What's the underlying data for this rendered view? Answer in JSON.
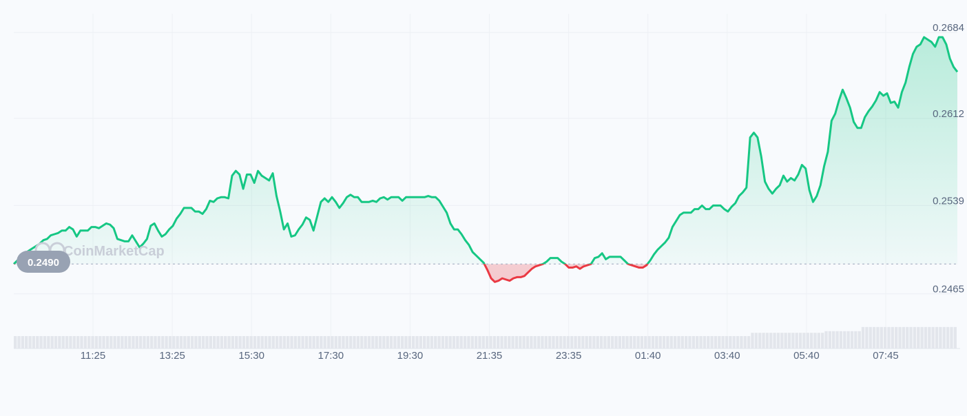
{
  "watermark": "CoinMarketCap",
  "open_price_label": "0.2490",
  "colors": {
    "up": "#16c784",
    "down": "#ea3943",
    "up_fill": "#16c784",
    "down_fill": "#ea3943",
    "volume": "#e3e6ec",
    "reference": "#a6b0c3"
  },
  "chart_data": {
    "type": "area",
    "title": "",
    "xlabel": "",
    "ylabel": "",
    "ylim": [
      0.244,
      0.2695
    ],
    "y_ticks": [
      "0.2684",
      "0.2612",
      "0.2539",
      "0.2465"
    ],
    "y_tick_values": [
      0.2684,
      0.2612,
      0.2539,
      0.2465
    ],
    "x_tick_labels": [
      "11:25",
      "13:25",
      "15:30",
      "17:30",
      "19:30",
      "21:35",
      "23:35",
      "01:40",
      "03:40",
      "05:40",
      "07:45"
    ],
    "reference_value": 0.249,
    "grid": true,
    "series": [
      {
        "x_start_index": 0,
        "values": [
          0.249,
          0.2493,
          0.2496,
          0.2499,
          0.2501,
          0.2503,
          0.2505,
          0.2507,
          0.251,
          0.2511,
          0.2514,
          0.2515,
          0.2516,
          0.2518,
          0.2518,
          0.2521,
          0.2519,
          0.2513,
          0.2518,
          0.2518,
          0.2518,
          0.2521,
          0.2521,
          0.252,
          0.2522,
          0.2524,
          0.2523,
          0.252,
          0.2511,
          0.251,
          0.2509,
          0.2509,
          0.2514,
          0.2509,
          0.2504,
          0.2507,
          0.2511,
          0.2522,
          0.2524,
          0.2518,
          0.2513,
          0.2515,
          0.2519,
          0.2522,
          0.2528,
          0.2532,
          0.2537,
          0.2537,
          0.2537,
          0.2534,
          0.2534,
          0.2532,
          0.2536,
          0.2543,
          0.2542,
          0.2545,
          0.2546,
          0.2546,
          0.2545,
          0.2564,
          0.2568,
          0.2565,
          0.2553,
          0.2565,
          0.2565,
          0.2558,
          0.2568,
          0.2564,
          0.2562,
          0.256,
          0.2566,
          0.2547,
          0.2534,
          0.2519,
          0.2524,
          0.2513,
          0.2514,
          0.2519,
          0.2523,
          0.2529,
          0.2527,
          0.2518,
          0.253,
          0.2542,
          0.2545,
          0.2542,
          0.2546,
          0.2542,
          0.2537,
          0.2541,
          0.2546,
          0.2548,
          0.2546,
          0.2546,
          0.2542,
          0.2542,
          0.2542,
          0.2543,
          0.2542,
          0.2545,
          0.2546,
          0.2544,
          0.2546,
          0.2546,
          0.2546,
          0.2543,
          0.2546,
          0.2546,
          0.2546,
          0.2546,
          0.2546,
          0.2546,
          0.2547,
          0.2546,
          0.2546,
          0.2543,
          0.2538,
          0.2533,
          0.2524,
          0.2519,
          0.2519,
          0.2515,
          0.251,
          0.2506,
          0.25,
          0.2497,
          0.2494,
          0.2491,
          0.2485,
          0.2478,
          0.2475,
          0.2476,
          0.2478,
          0.2477,
          0.2476,
          0.2478,
          0.2479,
          0.2479,
          0.248,
          0.2483,
          0.2486,
          0.2488,
          0.2489,
          0.249,
          0.2492,
          0.2495,
          0.2495,
          0.2495,
          0.2492,
          0.249,
          0.2487,
          0.2487,
          0.2488,
          0.2486,
          0.2488,
          0.2489,
          0.249,
          0.2495,
          0.2496,
          0.2499,
          0.2494,
          0.2496,
          0.2496,
          0.2496,
          0.2496,
          0.2493,
          0.249,
          0.2489,
          0.2488,
          0.2487,
          0.2487,
          0.2489,
          0.2493,
          0.2498,
          0.2502,
          0.2505,
          0.2508,
          0.2512,
          0.2521,
          0.2526,
          0.2531,
          0.2533,
          0.2533,
          0.2533,
          0.2536,
          0.2536,
          0.2539,
          0.2536,
          0.2536,
          0.2539,
          0.2539,
          0.2539,
          0.2536,
          0.2534,
          0.2538,
          0.2541,
          0.2547,
          0.255,
          0.2554,
          0.2596,
          0.26,
          0.2596,
          0.258,
          0.2559,
          0.2553,
          0.2549,
          0.2553,
          0.2556,
          0.2564,
          0.2559,
          0.2562,
          0.256,
          0.2565,
          0.2573,
          0.257,
          0.2552,
          0.2542,
          0.2547,
          0.2556,
          0.2572,
          0.2584,
          0.261,
          0.2616,
          0.2627,
          0.2636,
          0.2629,
          0.2621,
          0.2609,
          0.2604,
          0.2604,
          0.2613,
          0.2618,
          0.2622,
          0.2627,
          0.2634,
          0.2631,
          0.2633,
          0.2625,
          0.2626,
          0.2621,
          0.2634,
          0.2642,
          0.2655,
          0.2666,
          0.2672,
          0.2674,
          0.268,
          0.2678,
          0.2676,
          0.2672,
          0.268,
          0.268,
          0.2674,
          0.2662,
          0.2655,
          0.2651
        ]
      }
    ],
    "volume_relative": [
      0.3,
      0.3,
      0.3,
      0.3,
      0.3,
      0.3,
      0.3,
      0.3,
      0.3,
      0.3,
      0.3,
      0.3,
      0.3,
      0.3,
      0.3,
      0.3,
      0.3,
      0.3,
      0.3,
      0.3,
      0.3,
      0.3,
      0.3,
      0.3,
      0.3,
      0.3,
      0.3,
      0.3,
      0.3,
      0.3,
      0.3,
      0.3,
      0.3,
      0.3,
      0.3,
      0.3,
      0.3,
      0.3,
      0.3,
      0.3,
      0.3,
      0.3,
      0.3,
      0.3,
      0.3,
      0.3,
      0.3,
      0.3,
      0.3,
      0.3,
      0.3,
      0.3,
      0.3,
      0.3,
      0.3,
      0.3,
      0.3,
      0.3,
      0.3,
      0.3,
      0.3,
      0.3,
      0.3,
      0.3,
      0.3,
      0.3,
      0.3,
      0.3,
      0.3,
      0.3,
      0.3,
      0.3,
      0.3,
      0.3,
      0.3,
      0.3,
      0.3,
      0.3,
      0.3,
      0.3,
      0.3,
      0.3,
      0.3,
      0.3,
      0.3,
      0.3,
      0.3,
      0.3,
      0.3,
      0.3,
      0.3,
      0.3,
      0.3,
      0.3,
      0.3,
      0.3,
      0.3,
      0.3,
      0.3,
      0.3,
      0.3,
      0.3,
      0.3,
      0.3,
      0.3,
      0.3,
      0.3,
      0.3,
      0.3,
      0.3,
      0.3,
      0.3,
      0.3,
      0.3,
      0.3,
      0.3,
      0.3,
      0.3,
      0.3,
      0.3,
      0.3,
      0.3,
      0.3,
      0.3,
      0.3,
      0.3,
      0.3,
      0.3,
      0.3,
      0.3,
      0.3,
      0.3,
      0.3,
      0.3,
      0.3,
      0.3,
      0.3,
      0.3,
      0.3,
      0.3,
      0.3,
      0.3,
      0.3,
      0.3,
      0.3,
      0.3,
      0.3,
      0.3,
      0.3,
      0.3,
      0.3,
      0.3,
      0.3,
      0.3,
      0.3,
      0.3,
      0.3,
      0.3,
      0.3,
      0.3,
      0.3,
      0.3,
      0.3,
      0.3,
      0.3,
      0.3,
      0.3,
      0.3,
      0.3,
      0.3,
      0.3,
      0.3,
      0.3,
      0.3,
      0.3,
      0.3,
      0.3,
      0.3,
      0.3,
      0.3,
      0.3,
      0.3,
      0.3,
      0.3,
      0.3,
      0.3,
      0.3,
      0.3,
      0.3,
      0.3,
      0.3,
      0.3,
      0.3,
      0.3,
      0.3,
      0.3,
      0.3,
      0.3,
      0.3,
      0.3,
      0.38,
      0.38,
      0.38,
      0.38,
      0.38,
      0.38,
      0.38,
      0.38,
      0.38,
      0.38,
      0.38,
      0.38,
      0.38,
      0.38,
      0.38,
      0.38,
      0.38,
      0.38,
      0.38,
      0.38,
      0.42,
      0.42,
      0.42,
      0.42,
      0.42,
      0.42,
      0.42,
      0.42,
      0.42,
      0.42,
      0.52,
      0.52,
      0.52,
      0.52,
      0.52,
      0.52,
      0.52,
      0.52,
      0.52,
      0.52,
      0.52,
      0.52,
      0.52,
      0.52,
      0.52,
      0.52,
      0.52,
      0.52,
      0.52,
      0.52,
      0.52,
      0.52,
      0.52,
      0.52,
      0.52,
      0.52
    ]
  }
}
